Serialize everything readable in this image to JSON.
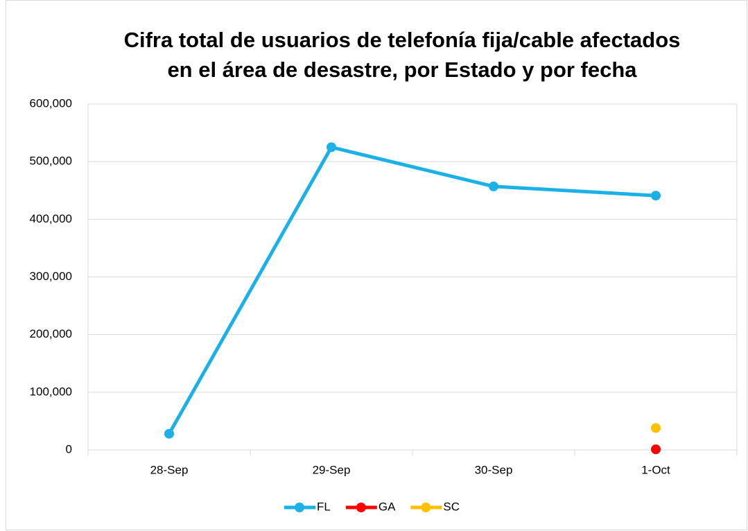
{
  "chart_data": {
    "type": "line",
    "title": [
      "Cifra total de usuarios de telefonía fija/cable afectados",
      "en el área de desastre, por Estado y por fecha"
    ],
    "categories": [
      "28-Sep",
      "29-Sep",
      "30-Sep",
      "1-Oct"
    ],
    "series": [
      {
        "name": "FL",
        "color": "#1bb0e6",
        "values": [
          28000,
          525000,
          457000,
          441000
        ]
      },
      {
        "name": "GA",
        "color": "#ff0000",
        "values": [
          null,
          null,
          null,
          1000
        ]
      },
      {
        "name": "SC",
        "color": "#ffc000",
        "values": [
          null,
          null,
          null,
          38000
        ]
      }
    ],
    "ylim": [
      0,
      600000
    ],
    "yticks": [
      {
        "value": 0,
        "label": "0"
      },
      {
        "value": 100000,
        "label": "100,000"
      },
      {
        "value": 200000,
        "label": "200,000"
      },
      {
        "value": 300000,
        "label": "300,000"
      },
      {
        "value": 400000,
        "label": "400,000"
      },
      {
        "value": 500000,
        "label": "500,000"
      },
      {
        "value": 600000,
        "label": "600,000"
      }
    ],
    "grid": true,
    "legend": "bottom"
  }
}
